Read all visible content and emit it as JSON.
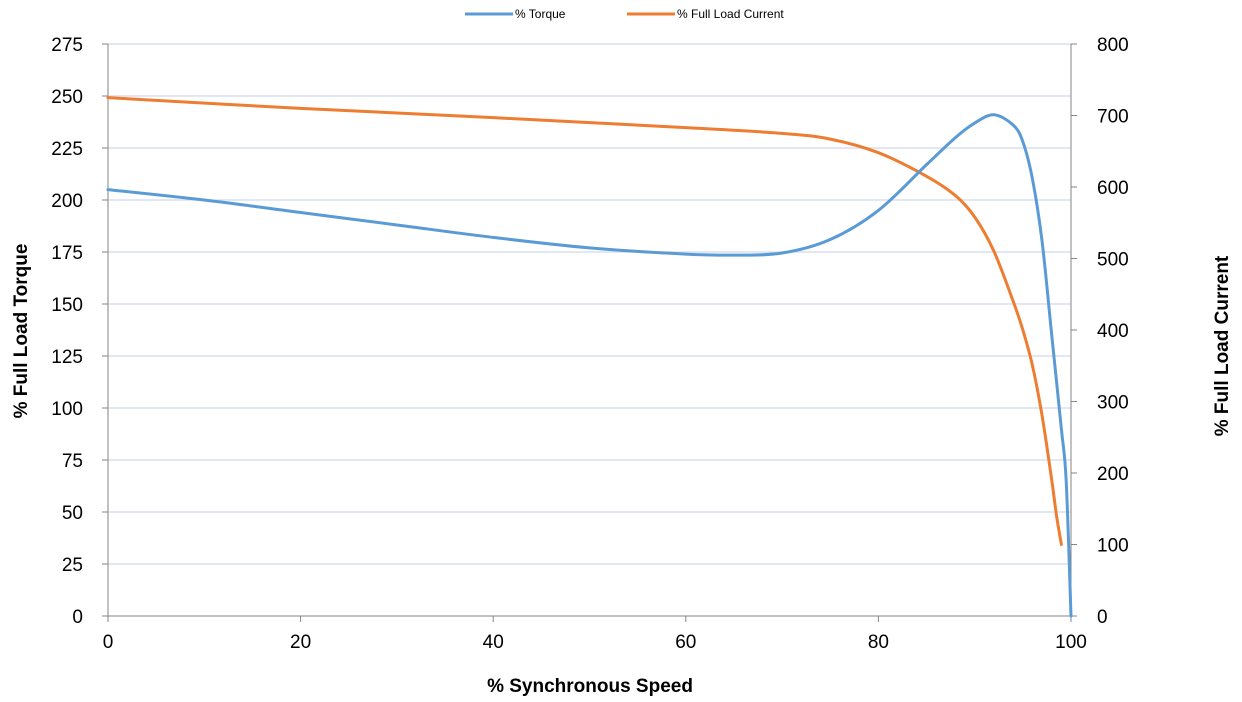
{
  "chart_data": {
    "type": "line",
    "xlabel": "% Synchronous Speed",
    "ylabel": "% Full Load Torque",
    "y2label": "% Full Load Current",
    "xlim": [
      0,
      100
    ],
    "ylim": [
      0,
      275
    ],
    "y2lim": [
      0,
      800
    ],
    "x_ticks": [
      "0",
      "20",
      "40",
      "60",
      "80",
      "100"
    ],
    "y_ticks": [
      "0",
      "25",
      "50",
      "75",
      "100",
      "125",
      "150",
      "175",
      "200",
      "225",
      "250",
      "275"
    ],
    "y2_ticks": [
      "0",
      "100",
      "200",
      "300",
      "400",
      "500",
      "600",
      "700",
      "800"
    ],
    "grid": true,
    "legend": "top-center",
    "series": [
      {
        "name": "% Torque",
        "axis": "left",
        "color": "#5B9BD5",
        "x": [
          0,
          10,
          20,
          30,
          40,
          50,
          60,
          65,
          70,
          75,
          80,
          85,
          88,
          90,
          92,
          94,
          95,
          96,
          97,
          98,
          99,
          99.5,
          100
        ],
        "y": [
          205,
          200,
          194,
          188,
          182,
          177,
          174,
          173.5,
          174.5,
          181,
          195,
          217,
          230,
          237,
          241,
          236,
          228,
          210,
          180,
          135,
          90,
          65,
          0
        ]
      },
      {
        "name": "% Full Load Current",
        "axis": "right",
        "color": "#ED7D31",
        "x": [
          0,
          20,
          40,
          60,
          70,
          75,
          80,
          85,
          88,
          90,
          92,
          94,
          95,
          96,
          97,
          98,
          98.5,
          99
        ],
        "y": [
          725,
          710,
          697,
          683,
          675,
          667,
          648,
          615,
          588,
          558,
          510,
          440,
          400,
          350,
          280,
          190,
          140,
          100
        ]
      }
    ]
  }
}
